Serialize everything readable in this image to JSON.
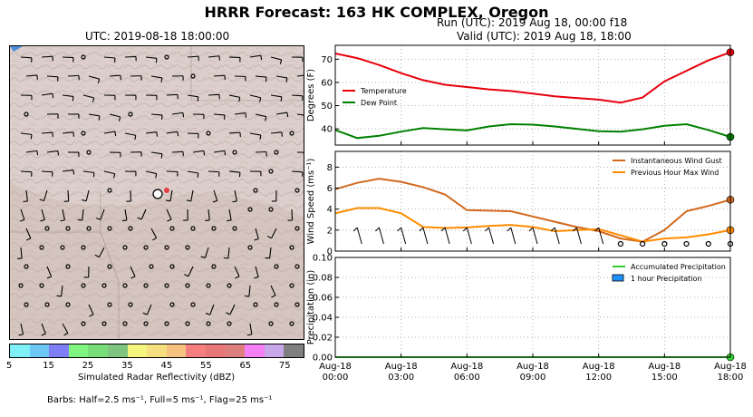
{
  "figure": {
    "title": "HRRR Forecast: 163 HK COMPLEX, Oregon",
    "run": "Run (UTC): 2019 Aug 18, 00:00 f18",
    "valid": "Valid (UTC): 2019 Aug 18, 18:00"
  },
  "map": {
    "title": "UTC: 2019-08-18 18:00:00",
    "colorbar_label": "Simulated Radar Reflectivity (dBZ)",
    "colorbar_ticks": [
      "5",
      "15",
      "25",
      "35",
      "45",
      "55",
      "65",
      "75"
    ],
    "colorbar_colors": [
      "#7ff0f5",
      "#6ec8f5",
      "#7f7ff5",
      "#7ff57f",
      "#77dd77",
      "#7fc47f",
      "#f5f57f",
      "#f5df7f",
      "#f5c27f",
      "#f57f7f",
      "#e87777",
      "#dd7f7f",
      "#f57ff5",
      "#c8a8e8",
      "#7f7f7f"
    ],
    "barbs_note": "Barbs: Half=2.5 ms⁻¹, Full=5 ms⁻¹, Flag=25 ms⁻¹",
    "colors": {
      "terrain": "#dccfcb",
      "marker": "#ffffff",
      "fire": "#e04040"
    }
  },
  "chart_data": [
    {
      "type": "line",
      "ylabel": "Degrees (F)",
      "ylim": [
        33,
        76
      ],
      "yticks": [
        "70",
        "60",
        "50",
        "40"
      ],
      "x": [
        "00:00",
        "01:00",
        "02:00",
        "03:00",
        "04:00",
        "05:00",
        "06:00",
        "07:00",
        "08:00",
        "09:00",
        "10:00",
        "11:00",
        "12:00",
        "13:00",
        "14:00",
        "15:00",
        "16:00",
        "17:00",
        "18:00"
      ],
      "grid": true,
      "legend": "left",
      "series": [
        {
          "name": "Temperature",
          "color": "#e8000b",
          "values": [
            72.5,
            70.5,
            67.5,
            64,
            61,
            59,
            58,
            57,
            56.3,
            55.2,
            54,
            53.3,
            52.6,
            51.3,
            53.5,
            60.5,
            65,
            69.5,
            73
          ],
          "end_marker": true
        },
        {
          "name": "Dew Point",
          "color": "#008000",
          "values": [
            39.5,
            36,
            37,
            38.8,
            40.3,
            39.8,
            39.3,
            41,
            42,
            41.8,
            41,
            40,
            39,
            38.8,
            39.8,
            41.3,
            42,
            39.5,
            36.5
          ],
          "end_marker": true
        }
      ]
    },
    {
      "type": "line",
      "ylabel": "Wind Speed (ms⁻¹)",
      "ylim": [
        0,
        9.5
      ],
      "yticks": [
        "8",
        "6",
        "4",
        "2",
        "0"
      ],
      "x": [
        "00:00",
        "01:00",
        "02:00",
        "03:00",
        "04:00",
        "05:00",
        "06:00",
        "07:00",
        "08:00",
        "09:00",
        "10:00",
        "11:00",
        "12:00",
        "13:00",
        "14:00",
        "15:00",
        "16:00",
        "17:00",
        "18:00"
      ],
      "grid": true,
      "legend": "top-right",
      "series": [
        {
          "name": "Instantaneous Wind Gust",
          "color": "#d2691e",
          "values": [
            5.9,
            6.5,
            6.9,
            6.6,
            6.1,
            5.4,
            3.9,
            3.85,
            3.8,
            3.3,
            2.8,
            2.3,
            1.9,
            1.2,
            0.9,
            2.0,
            3.8,
            4.3,
            4.9
          ],
          "end_marker": true
        },
        {
          "name": "Previous Hour Max Wind",
          "color": "#ff8c00",
          "values": [
            3.6,
            4.1,
            4.1,
            3.6,
            2.3,
            2.2,
            2.25,
            2.4,
            2.5,
            2.3,
            1.9,
            2.0,
            2.1,
            1.5,
            0.9,
            1.2,
            1.3,
            1.6,
            2.0
          ],
          "end_marker": true
        }
      ]
    },
    {
      "type": "line",
      "ylabel": "Precipitation (in)",
      "ylim": [
        0,
        0.1
      ],
      "yticks": [
        "0.10",
        "0.08",
        "0.06",
        "0.04",
        "0.02",
        "0.00"
      ],
      "x": [
        "00:00",
        "01:00",
        "02:00",
        "03:00",
        "04:00",
        "05:00",
        "06:00",
        "07:00",
        "08:00",
        "09:00",
        "10:00",
        "11:00",
        "12:00",
        "13:00",
        "14:00",
        "15:00",
        "16:00",
        "17:00",
        "18:00"
      ],
      "xticks": [
        {
          "top": "Aug-18",
          "bottom": "00:00"
        },
        {
          "top": "Aug-18",
          "bottom": "03:00"
        },
        {
          "top": "Aug-18",
          "bottom": "06:00"
        },
        {
          "top": "Aug-18",
          "bottom": "09:00"
        },
        {
          "top": "Aug-18",
          "bottom": "12:00"
        },
        {
          "top": "Aug-18",
          "bottom": "15:00"
        },
        {
          "top": "Aug-18",
          "bottom": "18:00"
        }
      ],
      "grid": true,
      "legend": "top-right",
      "series": [
        {
          "name": "Accumulated Precipitation",
          "color": "#32cd32",
          "values": [
            0,
            0,
            0,
            0,
            0,
            0,
            0,
            0,
            0,
            0,
            0,
            0,
            0,
            0,
            0,
            0,
            0,
            0,
            0
          ],
          "end_marker": true
        },
        {
          "name": "1 hour Precipitation",
          "color": "#1e90ff",
          "kind": "bar",
          "values": [
            0,
            0,
            0,
            0,
            0,
            0,
            0,
            0,
            0,
            0,
            0,
            0,
            0,
            0,
            0,
            0,
            0,
            0,
            0
          ]
        }
      ]
    }
  ]
}
